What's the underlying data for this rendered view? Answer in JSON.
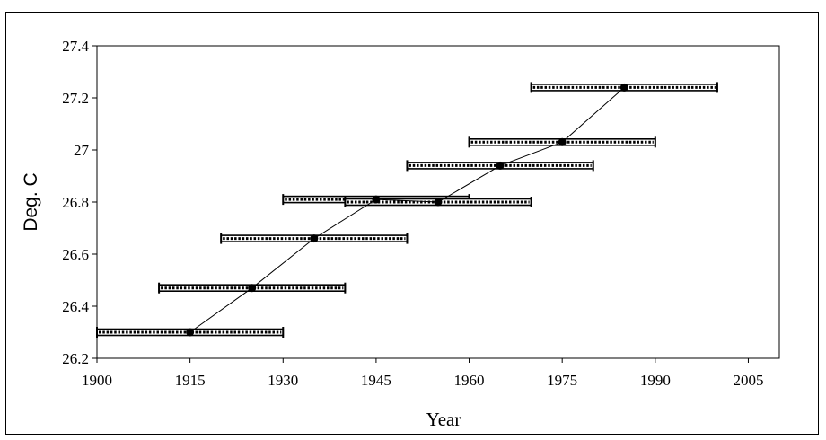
{
  "chart_data": {
    "type": "line",
    "title": "",
    "xlabel": "Year",
    "ylabel": "Deg. C",
    "xlim": [
      1900,
      2010
    ],
    "ylim": [
      26.2,
      27.4
    ],
    "x_ticks": [
      1900,
      1915,
      1930,
      1945,
      1960,
      1975,
      1990,
      2005
    ],
    "y_ticks": [
      "26.2",
      "26.4",
      "26.6",
      "26.8",
      "27",
      "27.2",
      "27.4"
    ],
    "grid": false,
    "legend": "none",
    "series": [
      {
        "points": [
          {
            "x": 1915,
            "y": 26.3,
            "xmin": 1900,
            "xmax": 1930
          },
          {
            "x": 1925,
            "y": 26.47,
            "xmin": 1910,
            "xmax": 1940
          },
          {
            "x": 1935,
            "y": 26.66,
            "xmin": 1920,
            "xmax": 1950
          },
          {
            "x": 1945,
            "y": 26.81,
            "xmin": 1930,
            "xmax": 1960
          },
          {
            "x": 1955,
            "y": 26.8,
            "xmin": 1940,
            "xmax": 1970
          },
          {
            "x": 1965,
            "y": 26.94,
            "xmin": 1950,
            "xmax": 1980
          },
          {
            "x": 1975,
            "y": 27.03,
            "xmin": 1960,
            "xmax": 1990
          },
          {
            "x": 1985,
            "y": 27.24,
            "xmin": 1970,
            "xmax": 2000
          }
        ]
      }
    ],
    "colors": {
      "line": "#000000",
      "errorbar": "#000000"
    }
  }
}
